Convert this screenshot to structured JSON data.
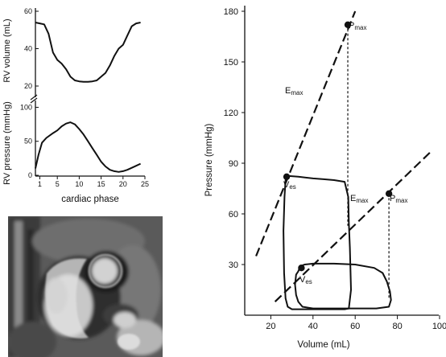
{
  "chart_data": [
    {
      "type": "line",
      "ylabel": "RV volume (mL)",
      "yticks": [
        20,
        40,
        60
      ],
      "ylim": [
        20,
        60
      ],
      "xlim": [
        0,
        25
      ],
      "series": [
        {
          "x": [
            0,
            1,
            2,
            3,
            4,
            5,
            6,
            7,
            8,
            9,
            10,
            11,
            12,
            13,
            14,
            15,
            16,
            17,
            18,
            19,
            20,
            21,
            22,
            23,
            24
          ],
          "values": [
            54,
            53.5,
            53,
            48,
            38,
            34,
            32,
            29,
            25,
            23,
            22.5,
            22.3,
            22.3,
            22.5,
            23,
            25,
            27,
            31,
            36,
            40,
            42,
            47,
            52,
            53.5,
            54
          ]
        }
      ]
    },
    {
      "type": "line",
      "ylabel": "RV pressure (mmHg)",
      "xlabel": "cardiac phase",
      "yticks": [
        0,
        50,
        100
      ],
      "xticks": [
        1,
        5,
        10,
        15,
        20,
        25
      ],
      "ylim": [
        0,
        110
      ],
      "xlim": [
        0,
        25
      ],
      "series": [
        {
          "x": [
            0,
            0.7,
            1.5,
            2.5,
            4,
            5,
            6,
            7,
            8,
            9,
            10,
            11,
            12,
            13,
            14,
            15,
            16,
            17,
            18,
            19,
            20,
            21,
            22,
            23,
            24
          ],
          "values": [
            10,
            30,
            48,
            55,
            62,
            66,
            72,
            76,
            78,
            75,
            68,
            60,
            50,
            40,
            30,
            20,
            13,
            8,
            6,
            5,
            6,
            8,
            11,
            14,
            17
          ]
        }
      ]
    },
    {
      "type": "line",
      "xlabel": "Volume (mL)",
      "ylabel": "Pressure (mmHg)",
      "xlim": [
        0,
        100
      ],
      "ylim": [
        0,
        180
      ],
      "xticks": [
        20,
        40,
        60,
        80,
        100
      ],
      "yticks": [
        30,
        60,
        90,
        120,
        150,
        180
      ],
      "loops": [
        {
          "x": [
            27,
            26.5,
            26,
            26.3,
            27,
            28,
            30,
            35,
            45,
            55,
            57,
            58,
            57.5,
            57,
            56.7,
            55,
            50,
            45,
            40,
            33,
            28,
            27
          ],
          "y": [
            80,
            70,
            50,
            25,
            10,
            5,
            3.5,
            3.5,
            3.5,
            3.5,
            4,
            15,
            40,
            55,
            70,
            79,
            80,
            80.5,
            81,
            82,
            82.5,
            80
          ]
        },
        {
          "x": [
            33,
            32,
            31.5,
            32,
            33,
            35,
            40,
            50,
            60,
            70,
            76,
            77,
            76.5,
            75,
            73,
            69,
            60,
            50,
            40,
            36,
            34,
            33
          ],
          "y": [
            26,
            24,
            18,
            12,
            8,
            5,
            4,
            4,
            4,
            4,
            5,
            9,
            14,
            20,
            25,
            28,
            30,
            30.5,
            30.5,
            30,
            29,
            26
          ]
        }
      ],
      "emax_lines": [
        {
          "x": [
            13,
            60
          ],
          "y": [
            35,
            180
          ]
        },
        {
          "x": [
            22,
            96
          ],
          "y": [
            8,
            97
          ]
        }
      ],
      "pmax_drops": [
        {
          "x": 56.5,
          "y_top": 172,
          "y_bottom": 53
        },
        {
          "x": 76,
          "y_top": 72,
          "y_bottom": 10
        }
      ],
      "points": [
        {
          "x": 56.5,
          "y": 172
        },
        {
          "x": 27.5,
          "y": 82
        },
        {
          "x": 76,
          "y": 72
        },
        {
          "x": 34.5,
          "y": 28
        }
      ],
      "annotations": {
        "pmax_upper": "Pmax",
        "emax_upper": "Emax",
        "ves_upper": "Ves",
        "emax_lower": "Emax",
        "pmax_lower": "Pmax",
        "ves_lower": "Ves"
      }
    }
  ]
}
